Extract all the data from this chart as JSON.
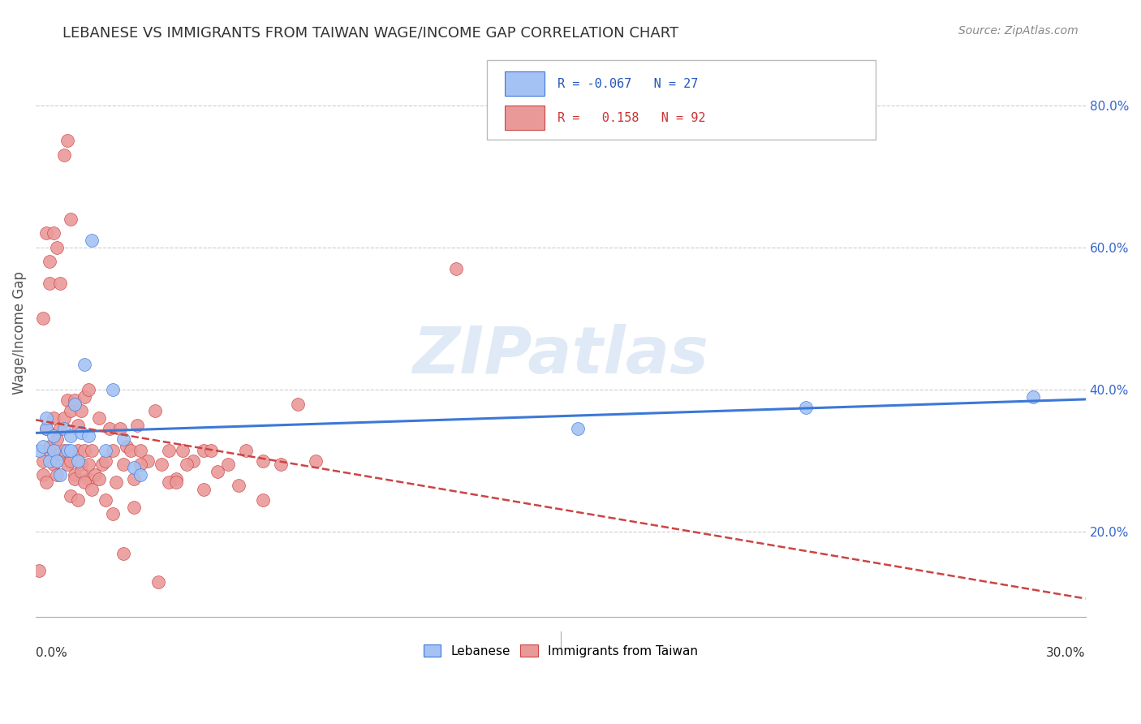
{
  "title": "LEBANESE VS IMMIGRANTS FROM TAIWAN WAGE/INCOME GAP CORRELATION CHART",
  "source": "Source: ZipAtlas.com",
  "ylabel": "Wage/Income Gap",
  "watermark": "ZIPatlas",
  "blue_color": "#a4c2f4",
  "pink_color": "#ea9999",
  "blue_color_dark": "#3c78d8",
  "pink_color_dark": "#cc4444",
  "xmin": 0.0,
  "xmax": 0.3,
  "ymin": 0.08,
  "ymax": 0.88,
  "ytick_vals": [
    0.2,
    0.4,
    0.6,
    0.8
  ],
  "ytick_labels": [
    "20.0%",
    "40.0%",
    "60.0%",
    "80.0%"
  ],
  "blue_scatter_x": [
    0.001,
    0.002,
    0.003,
    0.003,
    0.004,
    0.005,
    0.005,
    0.006,
    0.007,
    0.008,
    0.009,
    0.01,
    0.01,
    0.011,
    0.012,
    0.013,
    0.014,
    0.015,
    0.016,
    0.02,
    0.022,
    0.025,
    0.028,
    0.03,
    0.155,
    0.22,
    0.285
  ],
  "blue_scatter_y": [
    0.315,
    0.32,
    0.345,
    0.36,
    0.3,
    0.315,
    0.335,
    0.3,
    0.28,
    0.345,
    0.315,
    0.335,
    0.315,
    0.38,
    0.3,
    0.34,
    0.435,
    0.335,
    0.61,
    0.315,
    0.4,
    0.33,
    0.29,
    0.28,
    0.345,
    0.375,
    0.39
  ],
  "pink_scatter_x": [
    0.001,
    0.002,
    0.002,
    0.003,
    0.003,
    0.004,
    0.004,
    0.005,
    0.005,
    0.006,
    0.006,
    0.007,
    0.007,
    0.008,
    0.008,
    0.009,
    0.009,
    0.01,
    0.01,
    0.011,
    0.011,
    0.012,
    0.012,
    0.013,
    0.013,
    0.014,
    0.014,
    0.015,
    0.015,
    0.016,
    0.017,
    0.018,
    0.019,
    0.02,
    0.021,
    0.022,
    0.023,
    0.024,
    0.025,
    0.026,
    0.027,
    0.028,
    0.029,
    0.03,
    0.032,
    0.034,
    0.036,
    0.038,
    0.04,
    0.042,
    0.045,
    0.048,
    0.05,
    0.055,
    0.06,
    0.065,
    0.07,
    0.075,
    0.08,
    0.002,
    0.003,
    0.004,
    0.004,
    0.005,
    0.006,
    0.007,
    0.008,
    0.009,
    0.01,
    0.01,
    0.011,
    0.012,
    0.013,
    0.014,
    0.015,
    0.016,
    0.018,
    0.02,
    0.022,
    0.025,
    0.028,
    0.03,
    0.035,
    0.038,
    0.04,
    0.043,
    0.048,
    0.052,
    0.058,
    0.065,
    0.12
  ],
  "pink_scatter_y": [
    0.145,
    0.28,
    0.3,
    0.27,
    0.345,
    0.315,
    0.32,
    0.36,
    0.295,
    0.33,
    0.28,
    0.31,
    0.345,
    0.315,
    0.36,
    0.295,
    0.385,
    0.3,
    0.37,
    0.28,
    0.385,
    0.315,
    0.35,
    0.295,
    0.37,
    0.315,
    0.39,
    0.275,
    0.4,
    0.315,
    0.28,
    0.36,
    0.295,
    0.3,
    0.345,
    0.315,
    0.27,
    0.345,
    0.295,
    0.32,
    0.315,
    0.275,
    0.35,
    0.315,
    0.3,
    0.37,
    0.295,
    0.315,
    0.275,
    0.315,
    0.3,
    0.315,
    0.315,
    0.295,
    0.315,
    0.3,
    0.295,
    0.38,
    0.3,
    0.5,
    0.62,
    0.58,
    0.55,
    0.62,
    0.6,
    0.55,
    0.73,
    0.75,
    0.64,
    0.25,
    0.275,
    0.245,
    0.285,
    0.27,
    0.295,
    0.26,
    0.275,
    0.245,
    0.225,
    0.17,
    0.235,
    0.295,
    0.13,
    0.27,
    0.27,
    0.295,
    0.26,
    0.285,
    0.265,
    0.245,
    0.57
  ]
}
